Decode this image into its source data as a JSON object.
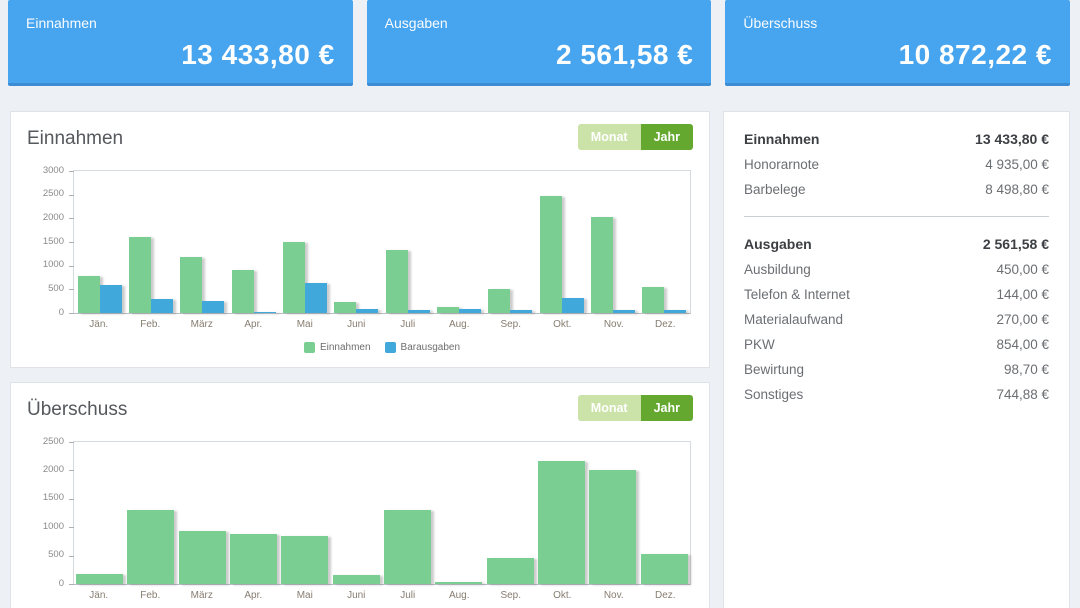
{
  "cards": [
    {
      "label": "Einnahmen",
      "value": "13 433,80 €"
    },
    {
      "label": "Ausgaben",
      "value": "2 561,58 €"
    },
    {
      "label": "Überschuss",
      "value": "10 872,22 €"
    }
  ],
  "panels": [
    {
      "title": "Einnahmen",
      "toggle": {
        "options": [
          "Monat",
          "Jahr"
        ],
        "active": "Jahr"
      }
    },
    {
      "title": "Überschuss",
      "toggle": {
        "options": [
          "Monat",
          "Jahr"
        ],
        "active": "Jahr"
      }
    }
  ],
  "chart_data": [
    {
      "type": "bar",
      "title": "Einnahmen",
      "categories": [
        "Jän.",
        "Feb.",
        "März",
        "Apr.",
        "Mai",
        "Juni",
        "Juli",
        "Aug.",
        "Sep.",
        "Okt.",
        "Nov.",
        "Dez."
      ],
      "series": [
        {
          "name": "Einnahmen",
          "color": "#7bce91",
          "values": [
            780,
            1600,
            1190,
            900,
            1500,
            230,
            1330,
            120,
            500,
            2480,
            2030,
            550
          ]
        },
        {
          "name": "Barausgaben",
          "color": "#41a8dc",
          "values": [
            600,
            290,
            260,
            30,
            640,
            85,
            55,
            90,
            55,
            310,
            55,
            55
          ]
        }
      ],
      "xlabel": "",
      "ylabel": "",
      "ylim": [
        0,
        3000
      ],
      "yticks": [
        0,
        500,
        1000,
        1500,
        2000,
        2500,
        3000
      ],
      "grid": false,
      "legend_position": "bottom"
    },
    {
      "type": "bar",
      "title": "Überschuss",
      "categories": [
        "Jän.",
        "Feb.",
        "März",
        "Apr.",
        "Mai",
        "Juni",
        "Juli",
        "Aug.",
        "Sep.",
        "Okt.",
        "Nov.",
        "Dez."
      ],
      "series": [
        {
          "name": "Überschuss",
          "color": "#7bce91",
          "values": [
            180,
            1310,
            940,
            880,
            850,
            150,
            1300,
            40,
            460,
            2160,
            2000,
            530
          ]
        }
      ],
      "xlabel": "",
      "ylabel": "",
      "ylim": [
        0,
        2500
      ],
      "yticks": [
        0,
        500,
        1000,
        1500,
        2000,
        2500
      ],
      "grid": false,
      "legend_position": "none"
    }
  ],
  "sidebar": {
    "sections": [
      {
        "title": "Einnahmen",
        "total": "13 433,80 €",
        "rows": [
          {
            "label": "Honorarnote",
            "value": "4 935,00 €"
          },
          {
            "label": "Barbelege",
            "value": "8 498,80 €"
          }
        ]
      },
      {
        "title": "Ausgaben",
        "total": "2 561,58 €",
        "rows": [
          {
            "label": "Ausbildung",
            "value": "450,00 €"
          },
          {
            "label": "Telefon & Internet",
            "value": "144,00 €"
          },
          {
            "label": "Materialaufwand",
            "value": "270,00 €"
          },
          {
            "label": "PKW",
            "value": "854,00 €"
          },
          {
            "label": "Bewirtung",
            "value": "98,70 €"
          },
          {
            "label": "Sonstiges",
            "value": "744,88 €"
          }
        ]
      }
    ]
  },
  "colors": {
    "card_bg": "#47a4ee",
    "card_border_bottom": "#3b8cd3",
    "bar_green": "#7bce91",
    "bar_blue": "#41a8dc",
    "toggle_active_bg": "#64a830",
    "toggle_inactive_bg": "#cbe2a9",
    "background": "#edf0f4"
  }
}
